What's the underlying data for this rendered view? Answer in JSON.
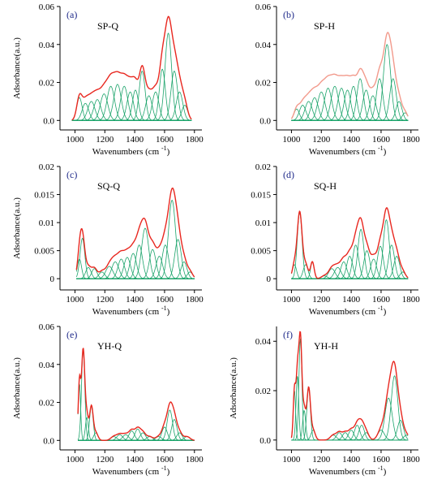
{
  "figure": {
    "colors": {
      "envelope": "#e8271f",
      "envelope_light": "#f29a8c",
      "component": "#1aa36a",
      "letter": "#1f2a8a"
    }
  },
  "chart_data": [
    {
      "type": "line",
      "letter": "(a)",
      "title": "SP-Q",
      "xlabel": "Wavenumbers (cm",
      "xlabel_sup": "-1",
      "xlabel_end": ")",
      "ylabel": "Adsorbance(a.u.)",
      "xlim": [
        900,
        1850
      ],
      "ylim": [
        -0.005,
        0.06
      ],
      "xticks": [
        1000,
        1200,
        1400,
        1600,
        1800
      ],
      "yticks": [
        0.0,
        0.02,
        0.04,
        0.06
      ],
      "ytick_labels": [
        "0.0",
        "0.02",
        "0.04",
        "0.06"
      ],
      "envelope_color": "#e8271f",
      "components": [
        {
          "c": 1030,
          "h": 0.012,
          "w": 18
        },
        {
          "c": 1070,
          "h": 0.009,
          "w": 22
        },
        {
          "c": 1110,
          "h": 0.01,
          "w": 24
        },
        {
          "c": 1150,
          "h": 0.011,
          "w": 24
        },
        {
          "c": 1195,
          "h": 0.014,
          "w": 25
        },
        {
          "c": 1240,
          "h": 0.018,
          "w": 25
        },
        {
          "c": 1285,
          "h": 0.019,
          "w": 25
        },
        {
          "c": 1330,
          "h": 0.018,
          "w": 24
        },
        {
          "c": 1370,
          "h": 0.015,
          "w": 22
        },
        {
          "c": 1405,
          "h": 0.016,
          "w": 20
        },
        {
          "c": 1450,
          "h": 0.026,
          "w": 20
        },
        {
          "c": 1495,
          "h": 0.013,
          "w": 22
        },
        {
          "c": 1540,
          "h": 0.015,
          "w": 22
        },
        {
          "c": 1585,
          "h": 0.027,
          "w": 20
        },
        {
          "c": 1625,
          "h": 0.046,
          "w": 22
        },
        {
          "c": 1665,
          "h": 0.026,
          "w": 22
        },
        {
          "c": 1700,
          "h": 0.015,
          "w": 22
        },
        {
          "c": 1735,
          "h": 0.008,
          "w": 20
        }
      ],
      "x_range": [
        980,
        1780
      ]
    },
    {
      "type": "line",
      "letter": "(b)",
      "title": "SP-H",
      "xlabel": "Wavenumbers (cm",
      "xlabel_sup": "-1",
      "xlabel_end": ")",
      "ylabel": "",
      "xlim": [
        900,
        1850
      ],
      "ylim": [
        -0.005,
        0.06
      ],
      "xticks": [
        1000,
        1200,
        1400,
        1600,
        1800
      ],
      "yticks": [
        0.0,
        0.02,
        0.04,
        0.06
      ],
      "ytick_labels": [
        "0.0",
        "0.02",
        "0.04",
        "0.06"
      ],
      "envelope_color": "#f29a8c",
      "components": [
        {
          "c": 1035,
          "h": 0.006,
          "w": 18
        },
        {
          "c": 1075,
          "h": 0.008,
          "w": 22
        },
        {
          "c": 1115,
          "h": 0.01,
          "w": 24
        },
        {
          "c": 1155,
          "h": 0.012,
          "w": 24
        },
        {
          "c": 1200,
          "h": 0.015,
          "w": 25
        },
        {
          "c": 1245,
          "h": 0.017,
          "w": 25
        },
        {
          "c": 1290,
          "h": 0.018,
          "w": 25
        },
        {
          "c": 1335,
          "h": 0.017,
          "w": 24
        },
        {
          "c": 1375,
          "h": 0.016,
          "w": 22
        },
        {
          "c": 1415,
          "h": 0.018,
          "w": 22
        },
        {
          "c": 1460,
          "h": 0.022,
          "w": 22
        },
        {
          "c": 1500,
          "h": 0.016,
          "w": 22
        },
        {
          "c": 1545,
          "h": 0.013,
          "w": 22
        },
        {
          "c": 1590,
          "h": 0.022,
          "w": 22
        },
        {
          "c": 1640,
          "h": 0.04,
          "w": 24
        },
        {
          "c": 1680,
          "h": 0.022,
          "w": 22
        },
        {
          "c": 1720,
          "h": 0.01,
          "w": 20
        },
        {
          "c": 1760,
          "h": 0.004,
          "w": 18
        }
      ],
      "x_range": [
        1000,
        1780
      ]
    },
    {
      "type": "line",
      "letter": "(c)",
      "title": "SQ-Q",
      "xlabel": "Wavenumbers (cm",
      "xlabel_sup": "-1",
      "xlabel_end": ")",
      "ylabel": "Adsorbance(a.u.)",
      "xlim": [
        900,
        1850
      ],
      "ylim": [
        -0.002,
        0.02
      ],
      "xticks": [
        1000,
        1200,
        1400,
        1600,
        1800
      ],
      "yticks": [
        0,
        0.005,
        0.01,
        0.015,
        0.02
      ],
      "ytick_labels": [
        "0",
        "0.005",
        "0.01",
        "0.015",
        "0.02"
      ],
      "envelope_color": "#e8271f",
      "components": [
        {
          "c": 1030,
          "h": 0.0035,
          "w": 14
        },
        {
          "c": 1050,
          "h": 0.0072,
          "w": 16
        },
        {
          "c": 1090,
          "h": 0.002,
          "w": 18
        },
        {
          "c": 1130,
          "h": 0.0018,
          "w": 18
        },
        {
          "c": 1180,
          "h": 0.0012,
          "w": 20
        },
        {
          "c": 1230,
          "h": 0.0022,
          "w": 24
        },
        {
          "c": 1270,
          "h": 0.003,
          "w": 24
        },
        {
          "c": 1310,
          "h": 0.0035,
          "w": 22
        },
        {
          "c": 1350,
          "h": 0.0038,
          "w": 22
        },
        {
          "c": 1390,
          "h": 0.0045,
          "w": 22
        },
        {
          "c": 1430,
          "h": 0.006,
          "w": 22
        },
        {
          "c": 1470,
          "h": 0.009,
          "w": 24
        },
        {
          "c": 1520,
          "h": 0.0052,
          "w": 22
        },
        {
          "c": 1565,
          "h": 0.004,
          "w": 22
        },
        {
          "c": 1605,
          "h": 0.006,
          "w": 22
        },
        {
          "c": 1650,
          "h": 0.014,
          "w": 24
        },
        {
          "c": 1690,
          "h": 0.007,
          "w": 22
        },
        {
          "c": 1730,
          "h": 0.003,
          "w": 20
        },
        {
          "c": 1770,
          "h": 0.0012,
          "w": 18
        }
      ],
      "x_range": [
        1010,
        1800
      ]
    },
    {
      "type": "line",
      "letter": "(d)",
      "title": "SQ-H",
      "xlabel": "Wavenumbers (cm",
      "xlabel_sup": "-1",
      "xlabel_end": ")",
      "ylabel": "",
      "xlim": [
        900,
        1850
      ],
      "ylim": [
        -0.002,
        0.02
      ],
      "xticks": [
        1000,
        1200,
        1400,
        1600,
        1800
      ],
      "yticks": [
        0,
        0.005,
        0.01,
        0.015,
        0.02
      ],
      "ytick_labels": [
        "0",
        "0.005",
        "0.01",
        "0.015",
        "0.02"
      ],
      "envelope_color": "#e8271f",
      "components": [
        {
          "c": 1020,
          "h": 0.0025,
          "w": 14
        },
        {
          "c": 1055,
          "h": 0.0118,
          "w": 16
        },
        {
          "c": 1095,
          "h": 0.0025,
          "w": 16
        },
        {
          "c": 1140,
          "h": 0.003,
          "w": 12
        },
        {
          "c": 1220,
          "h": 0.0005,
          "w": 20
        },
        {
          "c": 1270,
          "h": 0.0018,
          "w": 22
        },
        {
          "c": 1310,
          "h": 0.002,
          "w": 22
        },
        {
          "c": 1350,
          "h": 0.003,
          "w": 20
        },
        {
          "c": 1390,
          "h": 0.004,
          "w": 20
        },
        {
          "c": 1430,
          "h": 0.006,
          "w": 20
        },
        {
          "c": 1465,
          "h": 0.0088,
          "w": 20
        },
        {
          "c": 1505,
          "h": 0.005,
          "w": 20
        },
        {
          "c": 1550,
          "h": 0.0035,
          "w": 20
        },
        {
          "c": 1595,
          "h": 0.0058,
          "w": 20
        },
        {
          "c": 1635,
          "h": 0.0105,
          "w": 20
        },
        {
          "c": 1670,
          "h": 0.006,
          "w": 20
        },
        {
          "c": 1705,
          "h": 0.004,
          "w": 20
        },
        {
          "c": 1745,
          "h": 0.0012,
          "w": 18
        }
      ],
      "x_range": [
        1000,
        1780
      ]
    },
    {
      "type": "line",
      "letter": "(e)",
      "title": "YH-Q",
      "xlabel": "Wavenumbers (cm",
      "xlabel_sup": "-1",
      "xlabel_end": ")",
      "ylabel": "Adsorbance(a.u.)",
      "xlim": [
        900,
        1850
      ],
      "ylim": [
        -0.005,
        0.06
      ],
      "xticks": [
        1000,
        1200,
        1400,
        1600,
        1800
      ],
      "yticks": [
        0.0,
        0.02,
        0.04,
        0.06
      ],
      "ytick_labels": [
        "0.0",
        "0.02",
        "0.04",
        "0.06"
      ],
      "envelope_color": "#e8271f",
      "components": [
        {
          "c": 1030,
          "h": 0.03,
          "w": 8
        },
        {
          "c": 1055,
          "h": 0.048,
          "w": 11
        },
        {
          "c": 1080,
          "h": 0.012,
          "w": 10
        },
        {
          "c": 1110,
          "h": 0.018,
          "w": 12
        },
        {
          "c": 1140,
          "h": 0.004,
          "w": 14
        },
        {
          "c": 1260,
          "h": 0.002,
          "w": 20
        },
        {
          "c": 1300,
          "h": 0.003,
          "w": 20
        },
        {
          "c": 1340,
          "h": 0.003,
          "w": 20
        },
        {
          "c": 1380,
          "h": 0.005,
          "w": 18
        },
        {
          "c": 1420,
          "h": 0.006,
          "w": 18
        },
        {
          "c": 1455,
          "h": 0.004,
          "w": 18
        },
        {
          "c": 1500,
          "h": 0.002,
          "w": 20
        },
        {
          "c": 1560,
          "h": 0.002,
          "w": 20
        },
        {
          "c": 1600,
          "h": 0.007,
          "w": 18
        },
        {
          "c": 1635,
          "h": 0.016,
          "w": 18
        },
        {
          "c": 1665,
          "h": 0.011,
          "w": 18
        },
        {
          "c": 1700,
          "h": 0.004,
          "w": 18
        },
        {
          "c": 1750,
          "h": 0.002,
          "w": 20
        }
      ],
      "x_range": [
        1020,
        1800
      ]
    },
    {
      "type": "line",
      "letter": "(f)",
      "title": "YH-H",
      "xlabel": "Wavenumbers (cm",
      "xlabel_sup": "-1",
      "xlabel_end": ")",
      "ylabel": "Adsorbance(a.u.)",
      "xlim": [
        900,
        1850
      ],
      "ylim": [
        -0.004,
        0.046
      ],
      "xticks": [
        1000,
        1200,
        1400,
        1600,
        1800
      ],
      "yticks": [
        0.0,
        0.02,
        0.04
      ],
      "ytick_labels": [
        "0.0",
        "0.02",
        "0.04"
      ],
      "envelope_color": "#e8271f",
      "components": [
        {
          "c": 1020,
          "h": 0.02,
          "w": 8
        },
        {
          "c": 1040,
          "h": 0.026,
          "w": 9
        },
        {
          "c": 1060,
          "h": 0.041,
          "w": 10
        },
        {
          "c": 1085,
          "h": 0.012,
          "w": 10
        },
        {
          "c": 1115,
          "h": 0.021,
          "w": 12
        },
        {
          "c": 1145,
          "h": 0.004,
          "w": 14
        },
        {
          "c": 1280,
          "h": 0.002,
          "w": 20
        },
        {
          "c": 1320,
          "h": 0.003,
          "w": 18
        },
        {
          "c": 1360,
          "h": 0.003,
          "w": 18
        },
        {
          "c": 1400,
          "h": 0.004,
          "w": 18
        },
        {
          "c": 1440,
          "h": 0.006,
          "w": 18
        },
        {
          "c": 1470,
          "h": 0.006,
          "w": 18
        },
        {
          "c": 1500,
          "h": 0.003,
          "w": 18
        },
        {
          "c": 1600,
          "h": 0.004,
          "w": 22
        },
        {
          "c": 1650,
          "h": 0.017,
          "w": 24
        },
        {
          "c": 1690,
          "h": 0.026,
          "w": 22
        },
        {
          "c": 1730,
          "h": 0.008,
          "w": 20
        },
        {
          "c": 1770,
          "h": 0.002,
          "w": 18
        }
      ],
      "x_range": [
        1000,
        1780
      ]
    }
  ]
}
